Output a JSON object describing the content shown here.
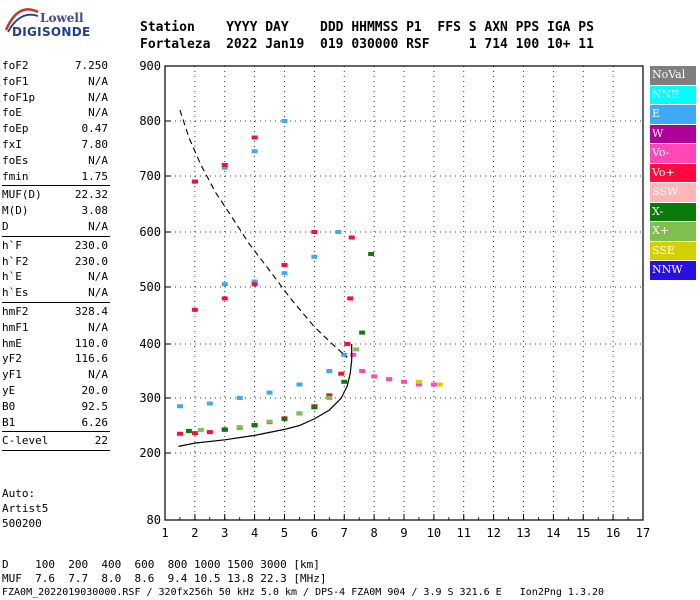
{
  "logo": {
    "line1": "Lowell",
    "line2": "DIGISONDE"
  },
  "header": {
    "row1": "Station    YYYY DAY    DDD HHMMSS P1  FFS S AXN PPS IGA PS",
    "row2": "Fortaleza  2022 Jan19  019 030000 RSF     1 714 100 10+ 11"
  },
  "params": {
    "group1": [
      {
        "name": "foF2",
        "value": "7.250"
      },
      {
        "name": "foF1",
        "value": "N/A"
      },
      {
        "name": "foF1p",
        "value": "N/A"
      },
      {
        "name": "foE",
        "value": "N/A"
      },
      {
        "name": "foEp",
        "value": "0.47"
      },
      {
        "name": "fxI",
        "value": "7.80"
      },
      {
        "name": "foEs",
        "value": "N/A"
      },
      {
        "name": "fmin",
        "value": "1.75"
      }
    ],
    "group2": [
      {
        "name": "MUF(D)",
        "value": "22.32"
      },
      {
        "name": "M(D)",
        "value": "3.08"
      },
      {
        "name": "D",
        "value": "N/A"
      }
    ],
    "group3": [
      {
        "name": "h`F",
        "value": "230.0"
      },
      {
        "name": "h`F2",
        "value": "230.0"
      },
      {
        "name": "h`E",
        "value": "N/A"
      },
      {
        "name": "h`Es",
        "value": "N/A"
      }
    ],
    "group4": [
      {
        "name": "hmF2",
        "value": "328.4"
      },
      {
        "name": "hmF1",
        "value": "N/A"
      },
      {
        "name": "hmE",
        "value": "110.0"
      },
      {
        "name": "yF2",
        "value": "116.6"
      },
      {
        "name": "yF1",
        "value": "N/A"
      },
      {
        "name": "yE",
        "value": "20.0"
      },
      {
        "name": "B0",
        "value": "92.5"
      },
      {
        "name": "B1",
        "value": "6.26"
      }
    ],
    "group5": [
      {
        "name": "C-level",
        "value": "22"
      }
    ]
  },
  "auto": {
    "line1": "Auto:",
    "line2": "Artist5",
    "line3": "500200"
  },
  "legend": [
    {
      "label": "NoVal",
      "color": "#7f7f7f"
    },
    {
      "label": "NNE",
      "color": "#00ffff"
    },
    {
      "label": "E",
      "color": "#3fa9f5"
    },
    {
      "label": "W",
      "color": "#b0009a"
    },
    {
      "label": "Vo-",
      "color": "#ff47b5"
    },
    {
      "label": "Vo+",
      "color": "#ff0a3c"
    },
    {
      "label": "SSW",
      "color": "#ffb6b6"
    },
    {
      "label": "X-",
      "color": "#0a7a0a"
    },
    {
      "label": "X+",
      "color": "#7fbf4f"
    },
    {
      "label": "SSE",
      "color": "#d4cf00"
    },
    {
      "label": "NNW",
      "color": "#2a10e0"
    }
  ],
  "footer": {
    "line1": "D    100  200  400  600  800 1000 1500 3000 [km]",
    "line2": "MUF  7.6  7.7  8.0  8.6  9.4 10.5 13.8 22.3 [MHz]",
    "line3": "FZA0M_2022019030000.RSF / 320fx256h 50 kHz 5.0 km / DPS-4 FZA0M 904 / 3.9 S 321.6 E   Ion2Png 1.3.20"
  },
  "chart_data": {
    "type": "scatter",
    "title": "",
    "xlabel": "",
    "ylabel": "",
    "xlim": [
      1,
      17
    ],
    "ylim": [
      80,
      900
    ],
    "x_ticks": [
      "1",
      "2",
      "3",
      "4",
      "5",
      "6",
      "7",
      "8",
      "9",
      "10",
      "11",
      "12",
      "13",
      "14",
      "15",
      "16",
      "17"
    ],
    "y_ticks": [
      "80",
      "200",
      "300",
      "400",
      "500",
      "600",
      "700",
      "800",
      "900"
    ],
    "y_tick_values": [
      80,
      200,
      300,
      400,
      500,
      600,
      700,
      800,
      900
    ],
    "y_axis_mapping": "piecewise-linear between listed tick values",
    "grid": true,
    "series": [
      {
        "name": "E",
        "color": "#3fa9f5",
        "points": [
          [
            1.5,
            285
          ],
          [
            2.5,
            290
          ],
          [
            3.5,
            300
          ],
          [
            4.5,
            310
          ],
          [
            5.5,
            325
          ],
          [
            6.5,
            350
          ],
          [
            7.0,
            380
          ],
          [
            3,
            505
          ],
          [
            4,
            510
          ],
          [
            5,
            525
          ],
          [
            6,
            555
          ],
          [
            6.8,
            600
          ],
          [
            2,
            690
          ],
          [
            3,
            715
          ],
          [
            4,
            745
          ],
          [
            5,
            800
          ]
        ]
      },
      {
        "name": "Vo+",
        "color": "#ff0a3c",
        "points": [
          [
            1.5,
            235
          ],
          [
            2.0,
            236
          ],
          [
            2.5,
            238
          ],
          [
            3.0,
            242
          ],
          [
            3.5,
            246
          ],
          [
            4.0,
            250
          ],
          [
            4.5,
            256
          ],
          [
            5.0,
            263
          ],
          [
            5.5,
            272
          ],
          [
            6.0,
            285
          ],
          [
            6.5,
            305
          ],
          [
            6.9,
            345
          ],
          [
            7.1,
            400
          ],
          [
            7.2,
            480
          ],
          [
            7.25,
            590
          ],
          [
            2.0,
            460
          ],
          [
            3.0,
            480
          ],
          [
            4.0,
            505
          ],
          [
            5.0,
            540
          ],
          [
            6.0,
            600
          ],
          [
            2.0,
            690
          ],
          [
            3.0,
            720
          ],
          [
            4.0,
            770
          ]
        ]
      },
      {
        "name": "Vo-",
        "color": "#ff47b5",
        "points": [
          [
            7.3,
            380
          ],
          [
            7.6,
            350
          ],
          [
            8.0,
            340
          ],
          [
            8.5,
            335
          ],
          [
            9.0,
            330
          ],
          [
            9.5,
            325
          ],
          [
            10.0,
            325
          ]
        ]
      },
      {
        "name": "X-",
        "color": "#0a7a0a",
        "points": [
          [
            1.8,
            240
          ],
          [
            3.0,
            243
          ],
          [
            4.0,
            251
          ],
          [
            5.0,
            262
          ],
          [
            6.0,
            283
          ],
          [
            7.0,
            330
          ],
          [
            7.6,
            420
          ],
          [
            7.9,
            560
          ]
        ]
      },
      {
        "name": "X+",
        "color": "#7fbf4f",
        "points": [
          [
            2.2,
            242
          ],
          [
            3.5,
            247
          ],
          [
            4.5,
            257
          ],
          [
            5.5,
            272
          ],
          [
            6.5,
            300
          ],
          [
            7.4,
            390
          ]
        ]
      },
      {
        "name": "SSE",
        "color": "#d4cf00",
        "points": [
          [
            9.5,
            330
          ],
          [
            10.2,
            325
          ]
        ]
      }
    ],
    "profile_line": {
      "name": "electron density profile",
      "points": [
        [
          1.45,
          212
        ],
        [
          2.0,
          218
        ],
        [
          3.0,
          224
        ],
        [
          4.0,
          232
        ],
        [
          5.0,
          243
        ],
        [
          5.5,
          250
        ],
        [
          6.0,
          262
        ],
        [
          6.5,
          278
        ],
        [
          6.9,
          300
        ],
        [
          7.1,
          322
        ],
        [
          7.2,
          345
        ],
        [
          7.25,
          370
        ],
        [
          7.25,
          400
        ]
      ]
    },
    "muf_line": {
      "name": "MUF dashed",
      "points": [
        [
          1.5,
          820
        ],
        [
          1.8,
          770
        ],
        [
          2.2,
          720
        ],
        [
          2.7,
          670
        ],
        [
          3.2,
          630
        ],
        [
          3.8,
          580
        ],
        [
          4.5,
          530
        ],
        [
          5.2,
          480
        ],
        [
          6.0,
          430
        ],
        [
          6.6,
          400
        ],
        [
          7.1,
          375
        ]
      ]
    }
  }
}
